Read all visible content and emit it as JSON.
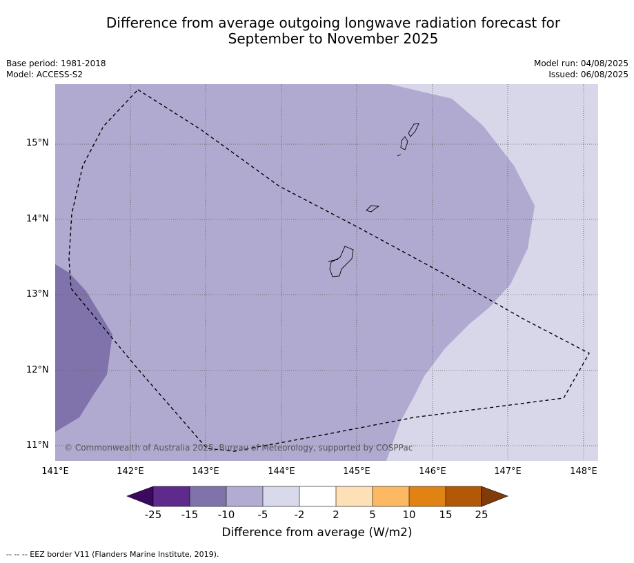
{
  "title_line1": "Difference from average outgoing longwave radiation forecast for",
  "title_line2": "September to November 2025",
  "meta": {
    "base_period": "Base period: 1981-2018",
    "model": "Model: ACCESS-S2",
    "model_run": "Model run: 04/08/2025",
    "issued": "Issued: 06/08/2025"
  },
  "map": {
    "lat_labels": [
      "15°N",
      "14°N",
      "13°N",
      "12°N",
      "11°N"
    ],
    "lon_labels": [
      "141°E",
      "142°E",
      "143°E",
      "144°E",
      "145°E",
      "146°E",
      "147°E",
      "148°E"
    ],
    "copyright": "© Commonwealth of Australia 2025, Bureau of Meteorology, supported by COSPPac",
    "colors": {
      "light": "#d7d7e9",
      "mid": "#b0aad0",
      "dark": "#8073ac"
    }
  },
  "colorbar": {
    "ticks": [
      "-25",
      "-15",
      "-10",
      "-5",
      "-2",
      "2",
      "5",
      "10",
      "15",
      "25"
    ],
    "colors": [
      "#3b0a5e",
      "#5e2a8c",
      "#8073ac",
      "#b2abd2",
      "#d8daeb",
      "#ffffff",
      "#fee0b6",
      "#fdb863",
      "#e08214",
      "#b35806",
      "#7f3b08"
    ],
    "title": "Difference from average (W/m2)"
  },
  "footnote": "--  --  -- EEZ border V11 (Flanders Marine Institute, 2019)."
}
